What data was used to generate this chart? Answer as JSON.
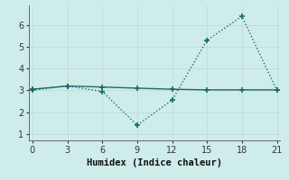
{
  "xlabel": "Humidex (Indice chaleur)",
  "bg_color": "#ceecea",
  "line_color": "#1a6b6b",
  "line1_x": [
    0,
    3,
    6,
    9,
    12,
    15,
    18,
    21
  ],
  "line1_y": [
    3.0,
    3.2,
    2.95,
    1.4,
    2.55,
    5.3,
    6.4,
    3.0
  ],
  "line2_x": [
    0,
    3,
    6,
    9,
    12,
    15,
    18,
    21
  ],
  "line2_y": [
    3.05,
    3.2,
    3.15,
    3.1,
    3.05,
    3.02,
    3.02,
    3.02
  ],
  "xlim": [
    -0.3,
    21.3
  ],
  "ylim": [
    0.7,
    6.9
  ],
  "xticks": [
    0,
    3,
    6,
    9,
    12,
    15,
    18,
    21
  ],
  "yticks": [
    1,
    2,
    3,
    4,
    5,
    6
  ]
}
